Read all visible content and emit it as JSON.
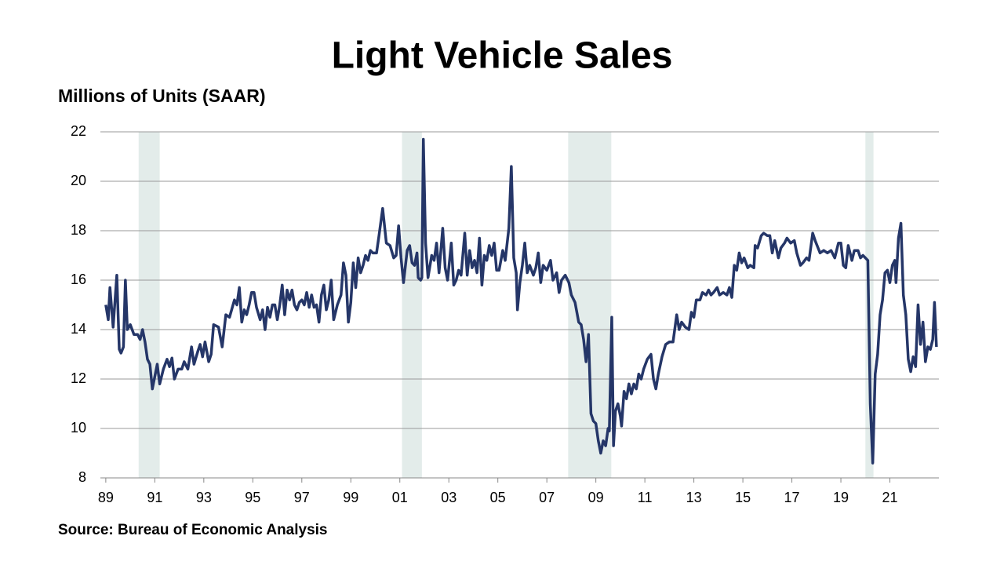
{
  "chart_data": {
    "type": "line",
    "title": "Light Vehicle Sales",
    "y_axis_label": "Millions of Units (SAAR)",
    "source": "Source: Bureau of Economic Analysis",
    "color": "#253668",
    "shade_color": "#e3ecea",
    "shaded_ranges": [
      [
        1990.34,
        1991.2
      ],
      [
        2001.09,
        2001.9
      ],
      [
        2007.87,
        2009.63
      ],
      [
        2020.0,
        2020.33
      ]
    ],
    "grid": true,
    "xlim": [
      1988.78,
      2023.0
    ],
    "xticks": [
      {
        "value": 1989,
        "label": "89"
      },
      {
        "value": 1991,
        "label": "91"
      },
      {
        "value": 1993,
        "label": "93"
      },
      {
        "value": 1995,
        "label": "95"
      },
      {
        "value": 1997,
        "label": "97"
      },
      {
        "value": 1999,
        "label": "99"
      },
      {
        "value": 2001,
        "label": "01"
      },
      {
        "value": 2003,
        "label": "03"
      },
      {
        "value": 2005,
        "label": "05"
      },
      {
        "value": 2007,
        "label": "07"
      },
      {
        "value": 2009,
        "label": "09"
      },
      {
        "value": 2011,
        "label": "11"
      },
      {
        "value": 2013,
        "label": "13"
      },
      {
        "value": 2015,
        "label": "15"
      },
      {
        "value": 2017,
        "label": "17"
      },
      {
        "value": 2019,
        "label": "19"
      },
      {
        "value": 2021,
        "label": "21"
      }
    ],
    "ylim": [
      8,
      22
    ],
    "yticks": [
      8,
      10,
      12,
      14,
      16,
      18,
      20,
      22
    ],
    "x": [
      1989.0,
      1989.1,
      1989.17,
      1989.3,
      1989.45,
      1989.55,
      1989.62,
      1989.72,
      1989.8,
      1989.88,
      1990.0,
      1990.15,
      1990.3,
      1990.4,
      1990.5,
      1990.6,
      1990.7,
      1990.8,
      1990.9,
      1991.0,
      1991.1,
      1991.2,
      1991.35,
      1991.5,
      1991.6,
      1991.7,
      1991.8,
      1991.95,
      1992.1,
      1992.2,
      1992.35,
      1992.5,
      1992.6,
      1992.75,
      1992.85,
      1992.95,
      1993.05,
      1993.2,
      1993.3,
      1993.4,
      1993.6,
      1993.75,
      1993.9,
      1994.05,
      1994.25,
      1994.35,
      1994.45,
      1994.55,
      1994.65,
      1994.75,
      1994.85,
      1994.95,
      1995.05,
      1995.15,
      1995.3,
      1995.4,
      1995.5,
      1995.6,
      1995.7,
      1995.8,
      1995.9,
      1996.0,
      1996.1,
      1996.2,
      1996.3,
      1996.4,
      1996.5,
      1996.6,
      1996.7,
      1996.8,
      1996.9,
      1997.0,
      1997.1,
      1997.2,
      1997.3,
      1997.4,
      1997.5,
      1997.6,
      1997.7,
      1997.8,
      1997.9,
      1998.0,
      1998.1,
      1998.2,
      1998.3,
      1998.45,
      1998.6,
      1998.7,
      1998.8,
      1998.9,
      1999.0,
      1999.1,
      1999.2,
      1999.3,
      1999.4,
      1999.5,
      1999.6,
      1999.7,
      1999.8,
      1999.9,
      2000.05,
      2000.15,
      2000.3,
      2000.45,
      2000.6,
      2000.75,
      2000.85,
      2000.95,
      2001.05,
      2001.15,
      2001.3,
      2001.4,
      2001.5,
      2001.6,
      2001.7,
      2001.75,
      2001.85,
      2001.9,
      2001.96,
      2002.05,
      2002.15,
      2002.3,
      2002.4,
      2002.5,
      2002.6,
      2002.75,
      2002.85,
      2002.95,
      2003.1,
      2003.2,
      2003.3,
      2003.4,
      2003.5,
      2003.65,
      2003.75,
      2003.85,
      2003.95,
      2004.05,
      2004.15,
      2004.25,
      2004.35,
      2004.45,
      2004.55,
      2004.65,
      2004.75,
      2004.85,
      2004.95,
      2005.05,
      2005.2,
      2005.3,
      2005.45,
      2005.55,
      2005.65,
      2005.75,
      2005.8,
      2005.9,
      2006.0,
      2006.1,
      2006.2,
      2006.3,
      2006.45,
      2006.55,
      2006.65,
      2006.75,
      2006.85,
      2007.0,
      2007.15,
      2007.25,
      2007.4,
      2007.5,
      2007.6,
      2007.75,
      2007.9,
      2008.0,
      2008.15,
      2008.3,
      2008.4,
      2008.5,
      2008.6,
      2008.7,
      2008.8,
      2008.9,
      2009.0,
      2009.1,
      2009.2,
      2009.3,
      2009.4,
      2009.5,
      2009.55,
      2009.65,
      2009.72,
      2009.8,
      2009.9,
      2010.0,
      2010.05,
      2010.15,
      2010.25,
      2010.35,
      2010.45,
      2010.55,
      2010.65,
      2010.75,
      2010.85,
      2010.95,
      2011.1,
      2011.25,
      2011.35,
      2011.45,
      2011.55,
      2011.7,
      2011.85,
      2012.0,
      2012.15,
      2012.3,
      2012.4,
      2012.5,
      2012.65,
      2012.8,
      2012.9,
      2013.0,
      2013.1,
      2013.25,
      2013.35,
      2013.5,
      2013.6,
      2013.7,
      2013.8,
      2013.95,
      2014.05,
      2014.2,
      2014.35,
      2014.45,
      2014.55,
      2014.65,
      2014.75,
      2014.85,
      2014.95,
      2015.05,
      2015.2,
      2015.3,
      2015.45,
      2015.5,
      2015.6,
      2015.75,
      2015.85,
      2016.0,
      2016.1,
      2016.2,
      2016.3,
      2016.45,
      2016.55,
      2016.7,
      2016.8,
      2016.95,
      2017.1,
      2017.2,
      2017.35,
      2017.45,
      2017.6,
      2017.7,
      2017.85,
      2017.95,
      2018.15,
      2018.3,
      2018.45,
      2018.6,
      2018.75,
      2018.9,
      2019.0,
      2019.1,
      2019.2,
      2019.3,
      2019.45,
      2019.55,
      2019.7,
      2019.8,
      2019.9,
      2020.0,
      2020.1,
      2020.2,
      2020.3,
      2020.4,
      2020.5,
      2020.6,
      2020.7,
      2020.8,
      2020.9,
      2021.0,
      2021.1,
      2021.2,
      2021.25,
      2021.35,
      2021.45,
      2021.55,
      2021.65,
      2021.75,
      2021.85,
      2021.95,
      2022.05,
      2022.15,
      2022.25,
      2022.35,
      2022.45,
      2022.55,
      2022.65,
      2022.75,
      2022.82,
      2022.9
    ],
    "values": [
      15.0,
      14.4,
      15.7,
      14.1,
      16.2,
      13.2,
      13.05,
      13.3,
      16.0,
      14.0,
      14.2,
      13.8,
      13.8,
      13.6,
      14.0,
      13.5,
      12.8,
      12.6,
      11.6,
      12.1,
      12.6,
      11.8,
      12.4,
      12.8,
      12.5,
      12.85,
      12.0,
      12.4,
      12.4,
      12.7,
      12.4,
      13.3,
      12.6,
      13.1,
      13.4,
      12.9,
      13.5,
      12.7,
      13.0,
      14.2,
      14.1,
      13.3,
      14.6,
      14.5,
      15.2,
      15.0,
      15.7,
      14.3,
      14.8,
      14.6,
      15.0,
      15.5,
      15.5,
      14.9,
      14.4,
      14.8,
      14.0,
      14.9,
      14.5,
      15.0,
      15.0,
      14.4,
      15.0,
      15.8,
      14.6,
      15.6,
      15.2,
      15.6,
      15.0,
      14.8,
      15.1,
      15.2,
      15.0,
      15.5,
      14.9,
      15.4,
      14.9,
      15.0,
      14.3,
      15.4,
      15.8,
      14.8,
      15.2,
      16.0,
      14.4,
      15.0,
      15.4,
      16.7,
      16.2,
      14.3,
      15.1,
      16.7,
      15.7,
      16.9,
      16.3,
      16.6,
      17.0,
      16.8,
      17.2,
      17.1,
      17.1,
      17.8,
      18.9,
      17.5,
      17.4,
      16.9,
      17.0,
      18.2,
      16.9,
      15.9,
      17.2,
      17.4,
      16.7,
      16.6,
      17.1,
      16.1,
      16.0,
      16.1,
      21.7,
      17.5,
      16.1,
      17.0,
      16.8,
      17.5,
      16.3,
      18.1,
      16.5,
      16.0,
      17.5,
      15.8,
      16.0,
      16.4,
      16.2,
      17.9,
      16.2,
      17.2,
      16.5,
      16.8,
      16.3,
      17.7,
      15.8,
      17.0,
      16.8,
      17.4,
      17.0,
      17.5,
      16.4,
      16.4,
      17.2,
      16.8,
      18.1,
      20.6,
      16.9,
      16.3,
      14.8,
      15.9,
      16.6,
      17.5,
      16.3,
      16.6,
      16.2,
      16.5,
      17.1,
      15.9,
      16.6,
      16.4,
      16.8,
      16.0,
      16.3,
      15.5,
      16.0,
      16.2,
      15.9,
      15.4,
      15.1,
      14.3,
      14.2,
      13.6,
      12.7,
      13.8,
      10.6,
      10.3,
      10.2,
      9.5,
      9.0,
      9.5,
      9.3,
      10.0,
      9.9,
      14.5,
      9.3,
      10.7,
      11.0,
      10.5,
      10.1,
      11.5,
      11.2,
      11.8,
      11.4,
      11.8,
      11.6,
      12.2,
      12.0,
      12.4,
      12.8,
      13.0,
      12.0,
      11.6,
      12.2,
      12.9,
      13.4,
      13.5,
      13.5,
      14.6,
      14.0,
      14.3,
      14.1,
      14.0,
      14.7,
      14.5,
      15.2,
      15.2,
      15.5,
      15.4,
      15.6,
      15.4,
      15.5,
      15.7,
      15.4,
      15.5,
      15.4,
      15.7,
      15.3,
      16.6,
      16.4,
      17.1,
      16.7,
      16.9,
      16.5,
      16.6,
      16.5,
      17.4,
      17.3,
      17.8,
      17.9,
      17.8,
      17.8,
      17.1,
      17.6,
      16.9,
      17.3,
      17.5,
      17.7,
      17.5,
      17.6,
      17.1,
      16.6,
      16.7,
      16.9,
      16.8,
      17.9,
      17.6,
      17.1,
      17.2,
      17.1,
      17.2,
      16.9,
      17.5,
      17.5,
      16.6,
      16.5,
      17.4,
      16.8,
      17.2,
      17.2,
      16.9,
      17.0,
      16.9,
      16.8,
      11.0,
      8.6,
      12.2,
      13.0,
      14.6,
      15.2,
      16.3,
      16.4,
      15.9,
      16.6,
      16.8,
      15.9,
      17.7,
      18.3,
      15.4,
      14.6,
      12.8,
      12.3,
      12.9,
      12.5,
      15.0,
      13.4,
      14.3,
      12.7,
      13.3,
      13.2,
      13.6,
      15.1,
      13.3
    ]
  }
}
